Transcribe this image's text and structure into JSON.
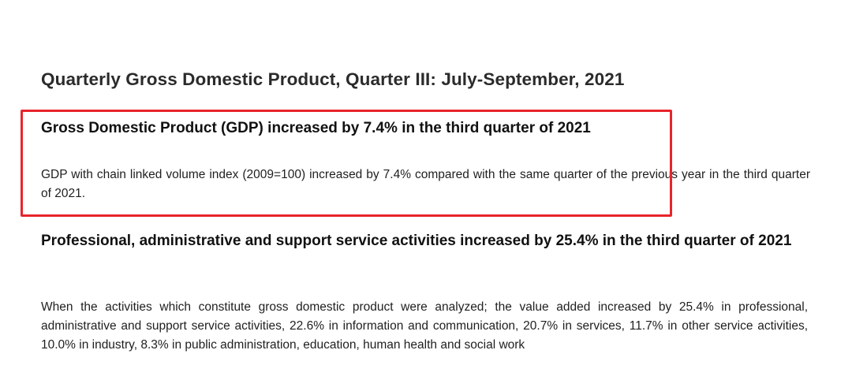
{
  "page": {
    "title": "Quarterly Gross Domestic Product, Quarter III: July-September, 2021"
  },
  "sections": [
    {
      "heading": "Gross Domestic Product (GDP) increased by 7.4% in the third quarter of 2021",
      "body": "GDP with chain linked volume index (2009=100) increased by 7.4% compared with the same quarter of the previous year in the third quarter of 2021."
    },
    {
      "heading": "Professional, administrative and support service activities increased by 25.4% in the third quarter of 2021",
      "body": "When the activities which constitute gross domestic product were analyzed; the value added increased by 25.4% in professional, administrative and support service activities, 22.6% in information and communication, 20.7% in services, 11.7% in other service activities, 10.0% in industry, 8.3% in public administration, education, human health and social work"
    }
  ],
  "highlight": {
    "color": "#e8242b"
  }
}
